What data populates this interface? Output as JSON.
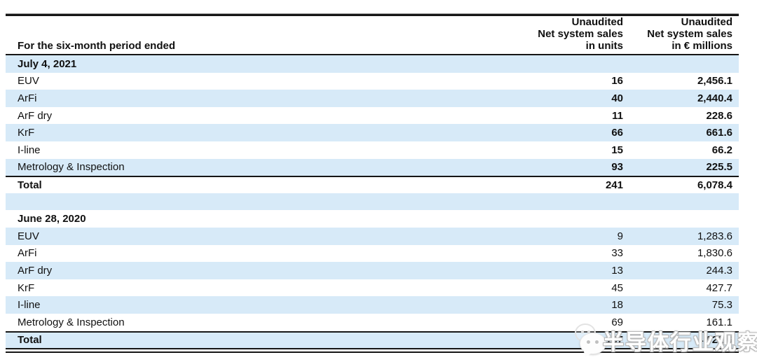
{
  "header": {
    "period_label": "For the six-month period ended",
    "units_col": {
      "l1": "Unaudited",
      "l2": "Net system sales",
      "l3": "in units"
    },
    "millions_col": {
      "l1": "Unaudited",
      "l2": "Net system sales",
      "l3": "in € millions"
    }
  },
  "sections": [
    {
      "title": "July 4, 2021",
      "rows": [
        {
          "label": "EUV",
          "units": "16",
          "millions": "2,456.1"
        },
        {
          "label": "ArFi",
          "units": "40",
          "millions": "2,440.4"
        },
        {
          "label": "ArF dry",
          "units": "11",
          "millions": "228.6"
        },
        {
          "label": "KrF",
          "units": "66",
          "millions": "661.6"
        },
        {
          "label": "I-line",
          "units": "15",
          "millions": "66.2"
        },
        {
          "label": "Metrology & Inspection",
          "units": "93",
          "millions": "225.5"
        }
      ],
      "total": {
        "label": "Total",
        "units": "241",
        "millions": "6,078.4"
      }
    },
    {
      "title": "June 28, 2020",
      "rows": [
        {
          "label": "EUV",
          "units": "9",
          "millions": "1,283.6"
        },
        {
          "label": "ArFi",
          "units": "33",
          "millions": "1,830.6"
        },
        {
          "label": "ArF dry",
          "units": "13",
          "millions": "244.3"
        },
        {
          "label": "KrF",
          "units": "45",
          "millions": "427.7"
        },
        {
          "label": "I-line",
          "units": "18",
          "millions": "75.3"
        },
        {
          "label": "Metrology & Inspection",
          "units": "69",
          "millions": "161.1"
        }
      ],
      "total": {
        "label": "Total",
        "units": "187",
        "millions": "4,022.6"
      }
    }
  ],
  "watermark": {
    "text": "半导体行业观察",
    "icon": "wechat-icon"
  },
  "colors": {
    "stripe_blue": "#d7eaf8",
    "rule_black": "#161616",
    "background": "#ffffff"
  }
}
